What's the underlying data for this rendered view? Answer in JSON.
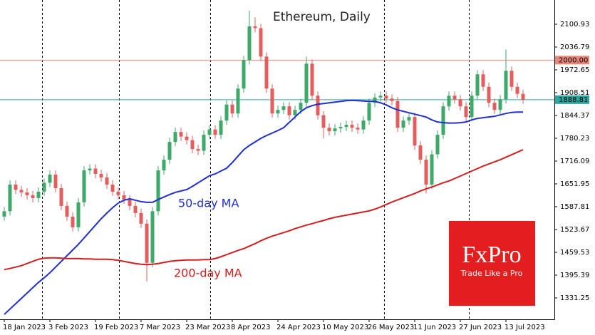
{
  "chart_data": {
    "type": "candlestick",
    "title": "Ethereum, Daily",
    "categories": [
      "18 Jan 2023",
      null,
      null,
      null,
      null,
      null,
      null,
      null,
      "3 Feb 2023",
      null,
      null,
      null,
      null,
      null,
      null,
      null,
      "19 Feb 2023",
      null,
      null,
      null,
      null,
      null,
      null,
      null,
      "7 Mar 2023",
      null,
      null,
      null,
      null,
      null,
      null,
      null,
      "23 Mar 2023",
      null,
      null,
      null,
      null,
      null,
      null,
      null,
      "8 Apr 2023",
      null,
      null,
      null,
      null,
      null,
      null,
      null,
      "24 Apr 2023",
      null,
      null,
      null,
      null,
      null,
      null,
      null,
      "10 May 2023",
      null,
      null,
      null,
      null,
      null,
      null,
      null,
      "26 May 2023",
      null,
      null,
      null,
      null,
      null,
      null,
      null,
      "11 Jun 2023",
      null,
      null,
      null,
      null,
      null,
      null,
      null,
      "27 Jun 2023",
      null,
      null,
      null,
      null,
      null,
      null,
      null,
      "13 Jul 2023",
      null,
      null,
      null
    ],
    "open": [
      1560,
      1575,
      1650,
      1635,
      1628,
      1620,
      1612,
      1630,
      1655,
      1678,
      1640,
      1590,
      1560,
      1530,
      1600,
      1690,
      1695,
      1680,
      1670,
      1650,
      1630,
      1620,
      1608,
      1590,
      1570,
      1540,
      1430,
      1575,
      1690,
      1720,
      1770,
      1798,
      1785,
      1775,
      1750,
      1745,
      1790,
      1805,
      1790,
      1830,
      1875,
      1850,
      1920,
      2000,
      2095,
      2090,
      2010,
      1920,
      1850,
      1860,
      1870,
      1845,
      1860,
      1880,
      1990,
      1900,
      1845,
      1810,
      1800,
      1808,
      1812,
      1818,
      1810,
      1805,
      1830,
      1880,
      1895,
      1900,
      1892,
      1885,
      1810,
      1830,
      1840,
      1760,
      1720,
      1650,
      1735,
      1790,
      1870,
      1900,
      1890,
      1870,
      1840,
      1900,
      1960,
      1925,
      1880,
      1860,
      1890,
      1970,
      1925,
      1905
    ],
    "high": [
      1587,
      1662,
      1662,
      1647,
      1640,
      1632,
      1642,
      1667,
      1690,
      1690,
      1652,
      1602,
      1572,
      1612,
      1702,
      1707,
      1707,
      1692,
      1682,
      1662,
      1642,
      1632,
      1620,
      1602,
      1582,
      1552,
      1587,
      1702,
      1732,
      1782,
      1810,
      1810,
      1797,
      1787,
      1762,
      1802,
      1817,
      1817,
      1842,
      1887,
      1887,
      1932,
      2012,
      2139,
      2120,
      2102,
      2022,
      1932,
      1872,
      1882,
      1882,
      1872,
      1892,
      2010,
      2002,
      1912,
      1857,
      1822,
      1820,
      1824,
      1830,
      1830,
      1822,
      1842,
      1892,
      1907,
      1912,
      1912,
      1904,
      1897,
      1842,
      1852,
      1852,
      1772,
      1732,
      1747,
      1802,
      1882,
      1912,
      1912,
      1902,
      1882,
      1912,
      1972,
      1972,
      1937,
      1892,
      1902,
      2030,
      1982,
      1937,
      1917
    ],
    "low": [
      1548,
      1563,
      1623,
      1616,
      1608,
      1600,
      1600,
      1618,
      1643,
      1628,
      1578,
      1548,
      1518,
      1518,
      1588,
      1678,
      1668,
      1658,
      1638,
      1618,
      1608,
      1596,
      1578,
      1558,
      1528,
      1377,
      1418,
      1563,
      1678,
      1708,
      1758,
      1773,
      1763,
      1738,
      1733,
      1733,
      1778,
      1778,
      1778,
      1818,
      1838,
      1838,
      1908,
      1988,
      2078,
      1998,
      1908,
      1838,
      1838,
      1848,
      1833,
      1833,
      1848,
      1868,
      1888,
      1833,
      1780,
      1788,
      1788,
      1796,
      1800,
      1798,
      1793,
      1793,
      1818,
      1868,
      1883,
      1880,
      1873,
      1798,
      1798,
      1818,
      1748,
      1708,
      1625,
      1638,
      1723,
      1778,
      1858,
      1878,
      1858,
      1828,
      1828,
      1888,
      1913,
      1868,
      1848,
      1848,
      1878,
      1913,
      1893,
      1877
    ],
    "close": [
      1575,
      1650,
      1635,
      1628,
      1620,
      1612,
      1630,
      1655,
      1678,
      1640,
      1590,
      1560,
      1530,
      1600,
      1690,
      1695,
      1680,
      1670,
      1650,
      1630,
      1620,
      1608,
      1590,
      1570,
      1540,
      1430,
      1575,
      1690,
      1720,
      1770,
      1798,
      1785,
      1775,
      1750,
      1745,
      1790,
      1805,
      1790,
      1830,
      1875,
      1850,
      1920,
      2000,
      2095,
      2090,
      2010,
      1920,
      1850,
      1860,
      1870,
      1845,
      1860,
      1880,
      1990,
      1900,
      1845,
      1810,
      1800,
      1808,
      1812,
      1818,
      1810,
      1805,
      1830,
      1880,
      1895,
      1900,
      1892,
      1885,
      1810,
      1830,
      1840,
      1760,
      1720,
      1650,
      1735,
      1790,
      1870,
      1900,
      1890,
      1870,
      1840,
      1900,
      1960,
      1925,
      1880,
      1860,
      1890,
      1970,
      1925,
      1905,
      1889
    ],
    "up_color": "#3daa6a",
    "down_color": "#e35d5d",
    "moving_averages": [
      {
        "label": "50-day MA",
        "color": "#1f2fd0",
        "values": [
          1285,
          1300,
          1315,
          1330,
          1345,
          1360,
          1375,
          1388,
          1402,
          1418,
          1434,
          1450,
          1466,
          1482,
          1500,
          1518,
          1536,
          1554,
          1570,
          1585,
          1598,
          1606,
          1610,
          1606,
          1602,
          1600,
          1600,
          1608,
          1615,
          1622,
          1628,
          1632,
          1636,
          1645,
          1655,
          1665,
          1675,
          1680,
          1688,
          1696,
          1712,
          1730,
          1748,
          1760,
          1770,
          1780,
          1788,
          1795,
          1802,
          1810,
          1825,
          1840,
          1855,
          1866,
          1872,
          1876,
          1878,
          1880,
          1882,
          1884,
          1886,
          1887,
          1886,
          1885,
          1884,
          1884,
          1880,
          1874,
          1866,
          1860,
          1856,
          1852,
          1848,
          1844,
          1840,
          1832,
          1826,
          1824,
          1823,
          1823,
          1824,
          1826,
          1832,
          1836,
          1838,
          1840,
          1842,
          1846,
          1850,
          1853,
          1854,
          1854
        ]
      },
      {
        "label": "200-day MA",
        "color": "#d21f1f",
        "values": [
          1411,
          1414,
          1418,
          1422,
          1428,
          1434,
          1440,
          1443,
          1444,
          1444,
          1443,
          1442,
          1442,
          1442,
          1441,
          1441,
          1440,
          1440,
          1440,
          1439,
          1437,
          1434,
          1431,
          1428,
          1426,
          1425,
          1426,
          1428,
          1431,
          1434,
          1436,
          1437,
          1438,
          1438,
          1438,
          1439,
          1439,
          1442,
          1447,
          1453,
          1459,
          1465,
          1470,
          1477,
          1484,
          1492,
          1499,
          1505,
          1510,
          1515,
          1520,
          1526,
          1531,
          1536,
          1540,
          1545,
          1549,
          1554,
          1558,
          1561,
          1564,
          1567,
          1570,
          1573,
          1576,
          1581,
          1587,
          1594,
          1601,
          1607,
          1613,
          1619,
          1625,
          1632,
          1638,
          1643,
          1649,
          1655,
          1660,
          1667,
          1674,
          1681,
          1688,
          1695,
          1702,
          1708,
          1714,
          1720,
          1727,
          1734,
          1741,
          1748
        ]
      }
    ],
    "hlines": [
      {
        "value": 2000,
        "label": "2000.00",
        "color": "#e8867a"
      },
      {
        "value": 1888.81,
        "label": "1888.81",
        "color": "#2aa6a0"
      }
    ],
    "ylim": [
      1271.1,
      2169.08
    ],
    "yticks": [
      1331.25,
      1395.39,
      1459.53,
      1523.67,
      1587.81,
      1651.95,
      1716.09,
      1780.23,
      1844.37,
      1908.51,
      1972.65,
      2036.79,
      2100.93
    ],
    "logo": {
      "brand": "FxPro",
      "tagline": "Trade Like a Pro"
    }
  }
}
